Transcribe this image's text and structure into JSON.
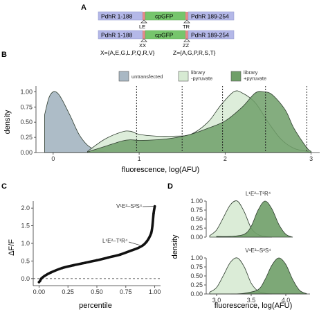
{
  "panels": {
    "a": "A",
    "b": "B",
    "c": "C",
    "d": "D"
  },
  "construct": {
    "row1": {
      "left": "PdhR 1-188",
      "mid": "cpGFP",
      "right": "PdhR 189-254",
      "left_marker": "LE",
      "right_marker": "TR"
    },
    "row2": {
      "left": "PdhR 1-188",
      "mid": "cpGFP",
      "right": "PdhR 189-254",
      "left_marker": "XX",
      "right_marker": "ZZ"
    },
    "x_def": "X={A,E,G,L,P,Q,R,V}",
    "z_def": "Z={A,G,P,R,S,T}"
  },
  "colors": {
    "untransfected": "#a9b8c4",
    "library_minus": "#d7ead3",
    "library_plus": "#6f9f68",
    "pdhr_box": "#b4b8e8",
    "gfp_box": "#76c56c",
    "linker": "#e58a8a"
  },
  "chart_data": [
    {
      "type": "area",
      "panel": "B",
      "xlabel": "fluorescence, log(AFU)",
      "ylabel": "density",
      "xlim": [
        -0.2,
        3.1
      ],
      "ylim": [
        0,
        1.05
      ],
      "x_ticks": [
        0,
        1,
        2,
        3
      ],
      "y_ticks": [
        0.0,
        0.25,
        0.5,
        0.75,
        1.0
      ],
      "x_tick_labels": [
        "0",
        "1",
        "2",
        "3"
      ],
      "y_tick_labels": [
        "0.00",
        "0.25",
        "0.50",
        "0.75",
        "1.00"
      ],
      "legend": [
        "untransfected",
        "library\n-pyruvate",
        "library\n+pyruvate"
      ],
      "legend_position": "top",
      "vlines": [
        0.97,
        1.5,
        1.97,
        2.47,
        2.95
      ],
      "series": [
        {
          "name": "untransfected",
          "x": [
            -0.1,
            -0.05,
            0.0,
            0.05,
            0.1,
            0.2,
            0.3,
            0.4,
            0.5,
            0.6,
            0.7
          ],
          "values": [
            0.62,
            0.9,
            1.0,
            0.98,
            0.88,
            0.6,
            0.3,
            0.12,
            0.04,
            0.01,
            0.0
          ]
        },
        {
          "name": "library\n-pyruvate",
          "x": [
            0.4,
            0.6,
            0.8,
            0.9,
            1.0,
            1.2,
            1.4,
            1.6,
            1.8,
            1.95,
            2.1,
            2.2,
            2.35,
            2.5,
            2.65,
            2.8,
            2.95,
            3.0
          ],
          "values": [
            0.02,
            0.22,
            0.34,
            0.35,
            0.3,
            0.27,
            0.27,
            0.3,
            0.5,
            0.78,
            1.0,
            0.98,
            0.82,
            0.5,
            0.22,
            0.07,
            0.02,
            0.0
          ]
        },
        {
          "name": "library\n+pyruvate",
          "x": [
            0.4,
            0.6,
            0.8,
            0.9,
            1.0,
            1.2,
            1.4,
            1.6,
            1.8,
            2.0,
            2.2,
            2.35,
            2.45,
            2.55,
            2.7,
            2.8,
            2.95,
            3.0
          ],
          "values": [
            0.01,
            0.1,
            0.19,
            0.21,
            0.2,
            0.21,
            0.24,
            0.3,
            0.4,
            0.52,
            0.75,
            0.98,
            1.0,
            0.95,
            0.7,
            0.4,
            0.08,
            0.02
          ]
        }
      ]
    },
    {
      "type": "scatter",
      "panel": "C",
      "xlabel": "percentile",
      "ylabel": "ΔF/F",
      "xlim": [
        -0.05,
        1.05
      ],
      "ylim": [
        -0.2,
        2.2
      ],
      "x_ticks": [
        0.0,
        0.25,
        0.5,
        0.75,
        1.0
      ],
      "x_tick_labels": [
        "0.00",
        "0.25",
        "0.50",
        "0.75",
        "1.00"
      ],
      "y_ticks": [
        0.0,
        0.5,
        1.0,
        1.5,
        2.0
      ],
      "y_tick_labels": [
        "0.0",
        "0.5",
        "1.0",
        "1.5",
        "2.0"
      ],
      "hline": 0,
      "x": [
        0.0,
        0.01,
        0.02,
        0.05,
        0.1,
        0.2,
        0.3,
        0.4,
        0.5,
        0.6,
        0.7,
        0.8,
        0.85,
        0.9,
        0.93,
        0.95,
        0.97,
        0.98,
        0.99,
        1.0
      ],
      "values": [
        -0.1,
        -0.06,
        0.0,
        0.08,
        0.17,
        0.3,
        0.38,
        0.45,
        0.52,
        0.6,
        0.68,
        0.8,
        0.86,
        0.95,
        1.05,
        1.15,
        1.3,
        1.5,
        1.85,
        2.05
      ],
      "annotations": [
        {
          "text": "V¹E²–S³S⁴",
          "x": 1.0,
          "y": 2.05
        },
        {
          "text": "L¹E²–T³R⁴",
          "x": 0.87,
          "y": 0.95
        }
      ]
    },
    {
      "type": "area",
      "panel": "D",
      "xlabel": "fluorescence, log(AFU)",
      "ylabel": "density",
      "xlim": [
        2.85,
        4.35
      ],
      "x_ticks": [
        3.0,
        3.5,
        4.0
      ],
      "x_tick_labels": [
        "3.0",
        "3.5",
        "4.0"
      ],
      "y_ticks": [
        0.0,
        0.25,
        0.5,
        0.75,
        1.0
      ],
      "y_tick_labels": [
        "0.00",
        "0.25",
        "0.50",
        "0.75",
        "1.00"
      ],
      "facets": [
        {
          "title": "L¹E²–T³R⁴",
          "series": [
            {
              "name": "library\n-pyruvate",
              "x": [
                2.9,
                3.0,
                3.1,
                3.2,
                3.3,
                3.4,
                3.5,
                3.6,
                3.7,
                3.8
              ],
              "values": [
                0.04,
                0.2,
                0.55,
                0.9,
                1.0,
                0.7,
                0.25,
                0.07,
                0.02,
                0.0
              ]
            },
            {
              "name": "library\n+pyruvate",
              "x": [
                3.0,
                3.2,
                3.4,
                3.5,
                3.6,
                3.7,
                3.8,
                3.9,
                4.0,
                4.1
              ],
              "values": [
                0.02,
                0.02,
                0.08,
                0.3,
                0.75,
                1.0,
                0.78,
                0.35,
                0.08,
                0.0
              ]
            }
          ]
        },
        {
          "title": "V¹E²–S³S⁴",
          "series": [
            {
              "name": "library\n-pyruvate",
              "x": [
                2.9,
                3.0,
                3.1,
                3.2,
                3.3,
                3.4,
                3.5,
                3.6,
                3.7,
                3.8
              ],
              "values": [
                0.05,
                0.18,
                0.52,
                0.88,
                1.0,
                0.75,
                0.3,
                0.08,
                0.02,
                0.0
              ]
            },
            {
              "name": "library\n+pyruvate",
              "x": [
                3.2,
                3.4,
                3.6,
                3.7,
                3.8,
                3.9,
                4.0,
                4.1,
                4.2,
                4.3
              ],
              "values": [
                0.0,
                0.02,
                0.12,
                0.4,
                0.8,
                1.0,
                0.82,
                0.4,
                0.1,
                0.01
              ]
            }
          ]
        }
      ]
    }
  ]
}
